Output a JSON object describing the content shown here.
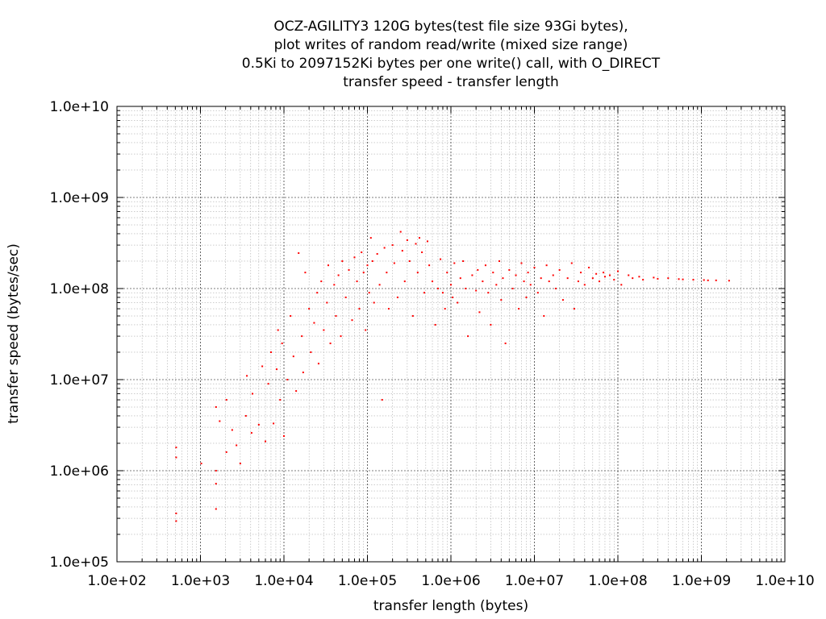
{
  "chart_data": {
    "type": "scatter",
    "title_lines": [
      "OCZ-AGILITY3 120G bytes(test file size 93Gi bytes),",
      "plot writes of random read/write (mixed size range)",
      "0.5Ki to 2097152Ki bytes per one write() call, with O_DIRECT",
      "transfer speed - transfer length"
    ],
    "xlabel": "transfer length (bytes)",
    "ylabel": "transfer speed (bytes/sec)",
    "x_scale": "log",
    "y_scale": "log",
    "xlim": [
      100,
      10000000000
    ],
    "ylim": [
      100000,
      10000000000
    ],
    "x_ticks": [
      {
        "value": 100,
        "label": "1.0e+02"
      },
      {
        "value": 1000,
        "label": "1.0e+03"
      },
      {
        "value": 10000,
        "label": "1.0e+04"
      },
      {
        "value": 100000,
        "label": "1.0e+05"
      },
      {
        "value": 1000000,
        "label": "1.0e+06"
      },
      {
        "value": 10000000,
        "label": "1.0e+07"
      },
      {
        "value": 100000000,
        "label": "1.0e+08"
      },
      {
        "value": 1000000000,
        "label": "1.0e+09"
      },
      {
        "value": 10000000000,
        "label": "1.0e+10"
      }
    ],
    "y_ticks": [
      {
        "value": 100000,
        "label": "1.0e+05"
      },
      {
        "value": 1000000,
        "label": "1.0e+06"
      },
      {
        "value": 10000000,
        "label": "1.0e+07"
      },
      {
        "value": 100000000,
        "label": "1.0e+08"
      },
      {
        "value": 1000000000,
        "label": "1.0e+09"
      },
      {
        "value": 10000000000,
        "label": "1.0e+10"
      }
    ],
    "grid": true,
    "minor_grid": true,
    "point_color": "#ff0000",
    "series": [
      {
        "points": [
          [
            512,
            1800000
          ],
          [
            512,
            1400000
          ],
          [
            512,
            340000
          ],
          [
            512,
            280000
          ],
          [
            1024,
            1200000
          ],
          [
            1536,
            5000000
          ],
          [
            1536,
            1000000
          ],
          [
            1536,
            720000
          ],
          [
            1536,
            380000
          ],
          [
            1700,
            3500000
          ],
          [
            2048,
            1600000
          ],
          [
            2048,
            6000000
          ],
          [
            2400,
            2800000
          ],
          [
            2700,
            1900000
          ],
          [
            3000,
            1200000
          ],
          [
            3500,
            4000000
          ],
          [
            3600,
            11000000
          ],
          [
            4096,
            2600000
          ],
          [
            4200,
            7000000
          ],
          [
            5000,
            3200000
          ],
          [
            5500,
            14000000
          ],
          [
            6000,
            2100000
          ],
          [
            6500,
            9000000
          ],
          [
            7000,
            20000000
          ],
          [
            7500,
            3300000
          ],
          [
            8192,
            13000000
          ],
          [
            8500,
            35000000
          ],
          [
            9000,
            6000000
          ],
          [
            9500,
            25000000
          ],
          [
            10000,
            2400000
          ],
          [
            11000,
            10000000
          ],
          [
            12000,
            50000000
          ],
          [
            13000,
            18000000
          ],
          [
            14000,
            7500000
          ],
          [
            15000,
            245000000
          ],
          [
            16384,
            30000000
          ],
          [
            17000,
            12000000
          ],
          [
            18000,
            150000000
          ],
          [
            20000,
            60000000
          ],
          [
            21000,
            20000000
          ],
          [
            23000,
            42000000
          ],
          [
            25000,
            90000000
          ],
          [
            26000,
            15000000
          ],
          [
            28000,
            120000000
          ],
          [
            30000,
            35000000
          ],
          [
            32768,
            70000000
          ],
          [
            34000,
            180000000
          ],
          [
            36000,
            25000000
          ],
          [
            40000,
            110000000
          ],
          [
            42000,
            50000000
          ],
          [
            45000,
            140000000
          ],
          [
            48000,
            30000000
          ],
          [
            50000,
            200000000
          ],
          [
            55000,
            80000000
          ],
          [
            60000,
            160000000
          ],
          [
            65536,
            45000000
          ],
          [
            70000,
            220000000
          ],
          [
            75000,
            120000000
          ],
          [
            80000,
            60000000
          ],
          [
            85000,
            250000000
          ],
          [
            90000,
            150000000
          ],
          [
            95000,
            35000000
          ],
          [
            100000,
            180000000
          ],
          [
            105000,
            90000000
          ],
          [
            110000,
            360000000
          ],
          [
            115000,
            200000000
          ],
          [
            120000,
            70000000
          ],
          [
            131072,
            240000000
          ],
          [
            140000,
            110000000
          ],
          [
            150000,
            6000000
          ],
          [
            160000,
            280000000
          ],
          [
            170000,
            150000000
          ],
          [
            180000,
            60000000
          ],
          [
            200000,
            300000000
          ],
          [
            210000,
            190000000
          ],
          [
            230000,
            80000000
          ],
          [
            250000,
            420000000
          ],
          [
            262144,
            260000000
          ],
          [
            280000,
            120000000
          ],
          [
            300000,
            340000000
          ],
          [
            320000,
            200000000
          ],
          [
            350000,
            50000000
          ],
          [
            380000,
            310000000
          ],
          [
            400000,
            150000000
          ],
          [
            420000,
            360000000
          ],
          [
            450000,
            250000000
          ],
          [
            480000,
            90000000
          ],
          [
            524288,
            330000000
          ],
          [
            550000,
            180000000
          ],
          [
            600000,
            120000000
          ],
          [
            650000,
            40000000
          ],
          [
            700000,
            100000000
          ],
          [
            750000,
            210000000
          ],
          [
            800000,
            90000000
          ],
          [
            850000,
            60000000
          ],
          [
            900000,
            150000000
          ],
          [
            1000000,
            110000000
          ],
          [
            1048576,
            80000000
          ],
          [
            1100000,
            190000000
          ],
          [
            1200000,
            70000000
          ],
          [
            1300000,
            130000000
          ],
          [
            1400000,
            200000000
          ],
          [
            1500000,
            100000000
          ],
          [
            1600000,
            30000000
          ],
          [
            1800000,
            140000000
          ],
          [
            2000000,
            95000000
          ],
          [
            2097152,
            160000000
          ],
          [
            2200000,
            55000000
          ],
          [
            2400000,
            120000000
          ],
          [
            2600000,
            180000000
          ],
          [
            2800000,
            90000000
          ],
          [
            3000000,
            40000000
          ],
          [
            3200000,
            150000000
          ],
          [
            3500000,
            110000000
          ],
          [
            3800000,
            200000000
          ],
          [
            4000000,
            75000000
          ],
          [
            4194304,
            130000000
          ],
          [
            4500000,
            25000000
          ],
          [
            5000000,
            160000000
          ],
          [
            5500000,
            100000000
          ],
          [
            6000000,
            140000000
          ],
          [
            6500000,
            60000000
          ],
          [
            7000000,
            190000000
          ],
          [
            7500000,
            120000000
          ],
          [
            8000000,
            80000000
          ],
          [
            8388608,
            150000000
          ],
          [
            9000000,
            110000000
          ],
          [
            10000000,
            170000000
          ],
          [
            11000000,
            90000000
          ],
          [
            12000000,
            130000000
          ],
          [
            13000000,
            50000000
          ],
          [
            14000000,
            180000000
          ],
          [
            15000000,
            120000000
          ],
          [
            16777216,
            140000000
          ],
          [
            18000000,
            100000000
          ],
          [
            20000000,
            160000000
          ],
          [
            22000000,
            75000000
          ],
          [
            25000000,
            130000000
          ],
          [
            28000000,
            190000000
          ],
          [
            30000000,
            60000000
          ],
          [
            33554432,
            120000000
          ],
          [
            36000000,
            150000000
          ],
          [
            40000000,
            110000000
          ],
          [
            45000000,
            170000000
          ],
          [
            50000000,
            130000000
          ],
          [
            55000000,
            145000000
          ],
          [
            60000000,
            120000000
          ],
          [
            67108864,
            150000000
          ],
          [
            70000000,
            135000000
          ],
          [
            80000000,
            140000000
          ],
          [
            90000000,
            125000000
          ],
          [
            100000000,
            155000000
          ],
          [
            110000000,
            110000000
          ],
          [
            134217728,
            140000000
          ],
          [
            150000000,
            130000000
          ],
          [
            180000000,
            135000000
          ],
          [
            200000000,
            125000000
          ],
          [
            268435456,
            132000000
          ],
          [
            300000000,
            128000000
          ],
          [
            400000000,
            130000000
          ],
          [
            536870912,
            127000000
          ],
          [
            600000000,
            126000000
          ],
          [
            800000000,
            125000000
          ],
          [
            1073741824,
            124000000
          ],
          [
            1200000000,
            123000000
          ],
          [
            1500000000,
            123000000
          ],
          [
            2147483648,
            122000000
          ]
        ]
      }
    ]
  }
}
